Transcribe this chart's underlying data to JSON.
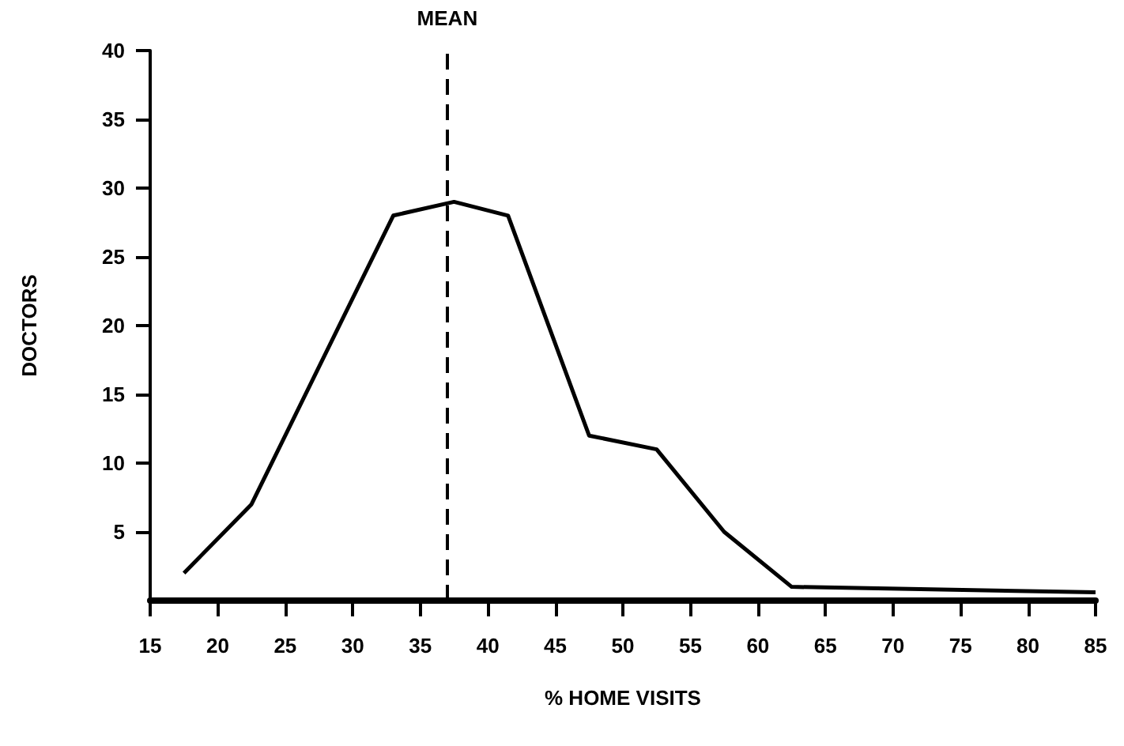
{
  "chart_data": {
    "type": "line",
    "xlabel": "% HOME VISITS",
    "ylabel": "DOCTORS",
    "series": [
      {
        "color": "#000000",
        "x": [
          17.5,
          22.5,
          33,
          37.5,
          41.5,
          47.5,
          52.5,
          57.5,
          62.5,
          85
        ],
        "values": [
          2,
          7,
          28,
          29,
          28,
          12,
          11,
          5,
          1,
          0.6
        ]
      }
    ],
    "xlim": [
      15,
      85
    ],
    "xticks": [
      15,
      20,
      25,
      30,
      35,
      40,
      45,
      50,
      55,
      60,
      65,
      70,
      75,
      80,
      85
    ],
    "ylim": [
      0,
      40
    ],
    "yticks": [
      5,
      10,
      15,
      20,
      25,
      30,
      35,
      40
    ],
    "ref_lines": [
      {
        "axis": "x",
        "value": 37,
        "label": "MEAN",
        "line_style": "dashed",
        "color": "#000000"
      }
    ],
    "marker": "none",
    "line_style": "solid"
  }
}
